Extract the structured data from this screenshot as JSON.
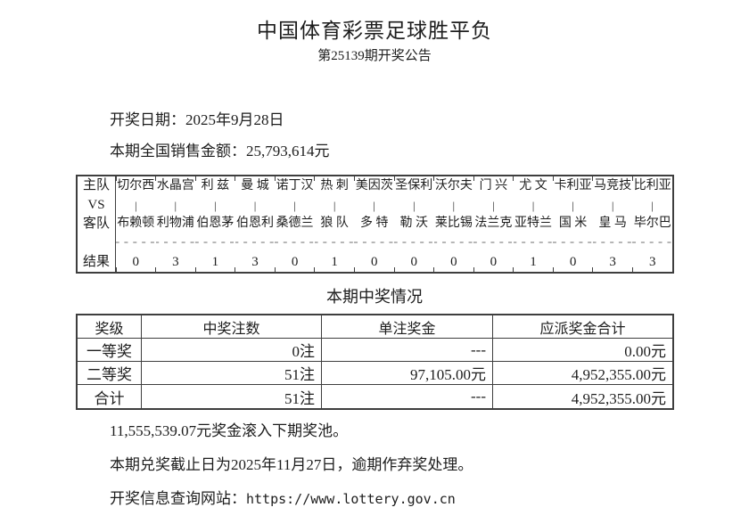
{
  "page": {
    "title": "中国体育彩票足球胜平负",
    "subtitle": "第25139期开奖公告",
    "draw_date": "开奖日期：2025年9月28日",
    "sales_amount": "本期全国销售金额：25,793,614元"
  },
  "colors": {
    "text": "#1d1d1d",
    "table_border": "#3e3e3e",
    "score_dash": "#b3b3b3",
    "background": "#ffffff"
  },
  "match_table": {
    "row_labels": {
      "home": "主队",
      "vs": "VS",
      "away": "客队",
      "result": "结果"
    },
    "vs_separator": "|",
    "score_placeholder": "-----",
    "matches": [
      {
        "home": "切尔西",
        "away": "布赖顿",
        "result": "0"
      },
      {
        "home": "水晶宫",
        "away": "利物浦",
        "result": "3"
      },
      {
        "home": "利 兹",
        "away": "伯恩茅",
        "result": "1"
      },
      {
        "home": "曼 城",
        "away": "伯恩利",
        "result": "3"
      },
      {
        "home": "诺丁汉",
        "away": "桑德兰",
        "result": "0"
      },
      {
        "home": "热 刺",
        "away": "狼 队",
        "result": "1"
      },
      {
        "home": "美因茨",
        "away": "多 特",
        "result": "0"
      },
      {
        "home": "圣保利",
        "away": "勒 沃",
        "result": "0"
      },
      {
        "home": "沃尔夫",
        "away": "莱比锡",
        "result": "0"
      },
      {
        "home": "门 兴",
        "away": "法兰克",
        "result": "0"
      },
      {
        "home": "尤 文",
        "away": "亚特兰",
        "result": "1"
      },
      {
        "home": "卡利亚",
        "away": "国 米",
        "result": "0"
      },
      {
        "home": "马竞技",
        "away": "皇 马",
        "result": "3"
      },
      {
        "home": "比利亚",
        "away": "毕尔巴",
        "result": "3"
      }
    ]
  },
  "prize_section": {
    "title": "本期中奖情况",
    "headers": [
      "奖级",
      "中奖注数",
      "单注奖金",
      "应派奖金合计"
    ],
    "rows": [
      {
        "level": "一等奖",
        "count": "0注",
        "single": "---",
        "total": "0.00元"
      },
      {
        "level": "二等奖",
        "count": "51注",
        "single": "97,105.00元",
        "total": "4,952,355.00元"
      },
      {
        "level": "合计",
        "count": "51注",
        "single": "---",
        "total": "4,952,355.00元"
      }
    ]
  },
  "footer": {
    "rollover": "11,555,539.07元奖金滚入下期奖池。",
    "deadline": "本期兑奖截止日为2025年11月27日，逾期作弃奖处理。",
    "website_label": "开奖信息查询网站：",
    "website_url": "https://www.lottery.gov.cn"
  }
}
